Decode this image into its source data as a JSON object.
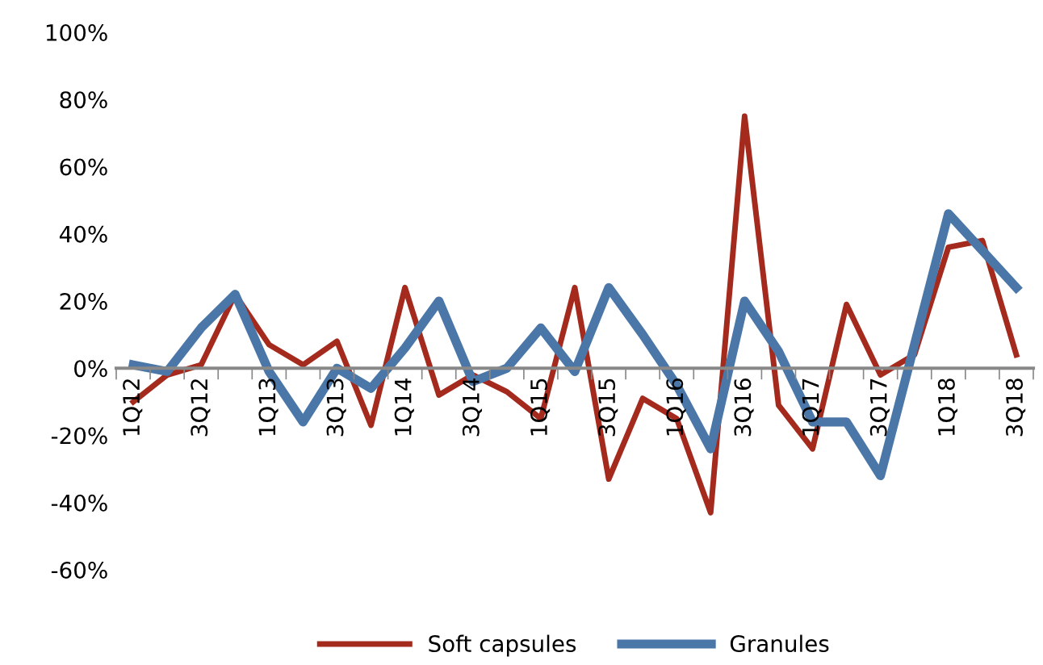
{
  "chart_data": {
    "type": "line",
    "categories": [
      "1Q12",
      null,
      "3Q12",
      null,
      "1Q13",
      null,
      "3Q13",
      null,
      "1Q14",
      null,
      "3Q14",
      null,
      "1Q15",
      null,
      "3Q15",
      null,
      "1Q16",
      null,
      "3Q16",
      null,
      "1Q17",
      null,
      "3Q17",
      null,
      "1Q18",
      null,
      "3Q18"
    ],
    "series": [
      {
        "name": "Soft capsules",
        "color": "#a52a1e",
        "values": [
          -10,
          -2,
          1,
          22,
          7,
          1,
          8,
          -17,
          24,
          -8,
          -2,
          -7,
          -15,
          24,
          -33,
          -9,
          -15,
          -43,
          75,
          -11,
          -24,
          19,
          -2,
          4,
          36,
          38,
          4
        ]
      },
      {
        "name": "Granules",
        "color": "#4a77a8",
        "values": [
          1,
          -1,
          12,
          22,
          -1,
          -16,
          0,
          -6,
          6,
          20,
          -4,
          0,
          12,
          -1,
          24,
          10,
          -5,
          -24,
          20,
          5,
          -16,
          -16,
          -32,
          7,
          46,
          35,
          24
        ]
      }
    ],
    "ylim": [
      -60,
      100
    ],
    "yticks": [
      {
        "value": -60,
        "label": "-60%"
      },
      {
        "value": -40,
        "label": "-40%"
      },
      {
        "value": -20,
        "label": "-20%"
      },
      {
        "value": 0,
        "label": "0%"
      },
      {
        "value": 20,
        "label": "20%"
      },
      {
        "value": 40,
        "label": "40%"
      },
      {
        "value": 60,
        "label": "60%"
      },
      {
        "value": 80,
        "label": "80%"
      },
      {
        "value": 100,
        "label": "100%"
      }
    ],
    "legend": "bottom",
    "grid": false,
    "marker": "none",
    "line_style": "solid"
  }
}
